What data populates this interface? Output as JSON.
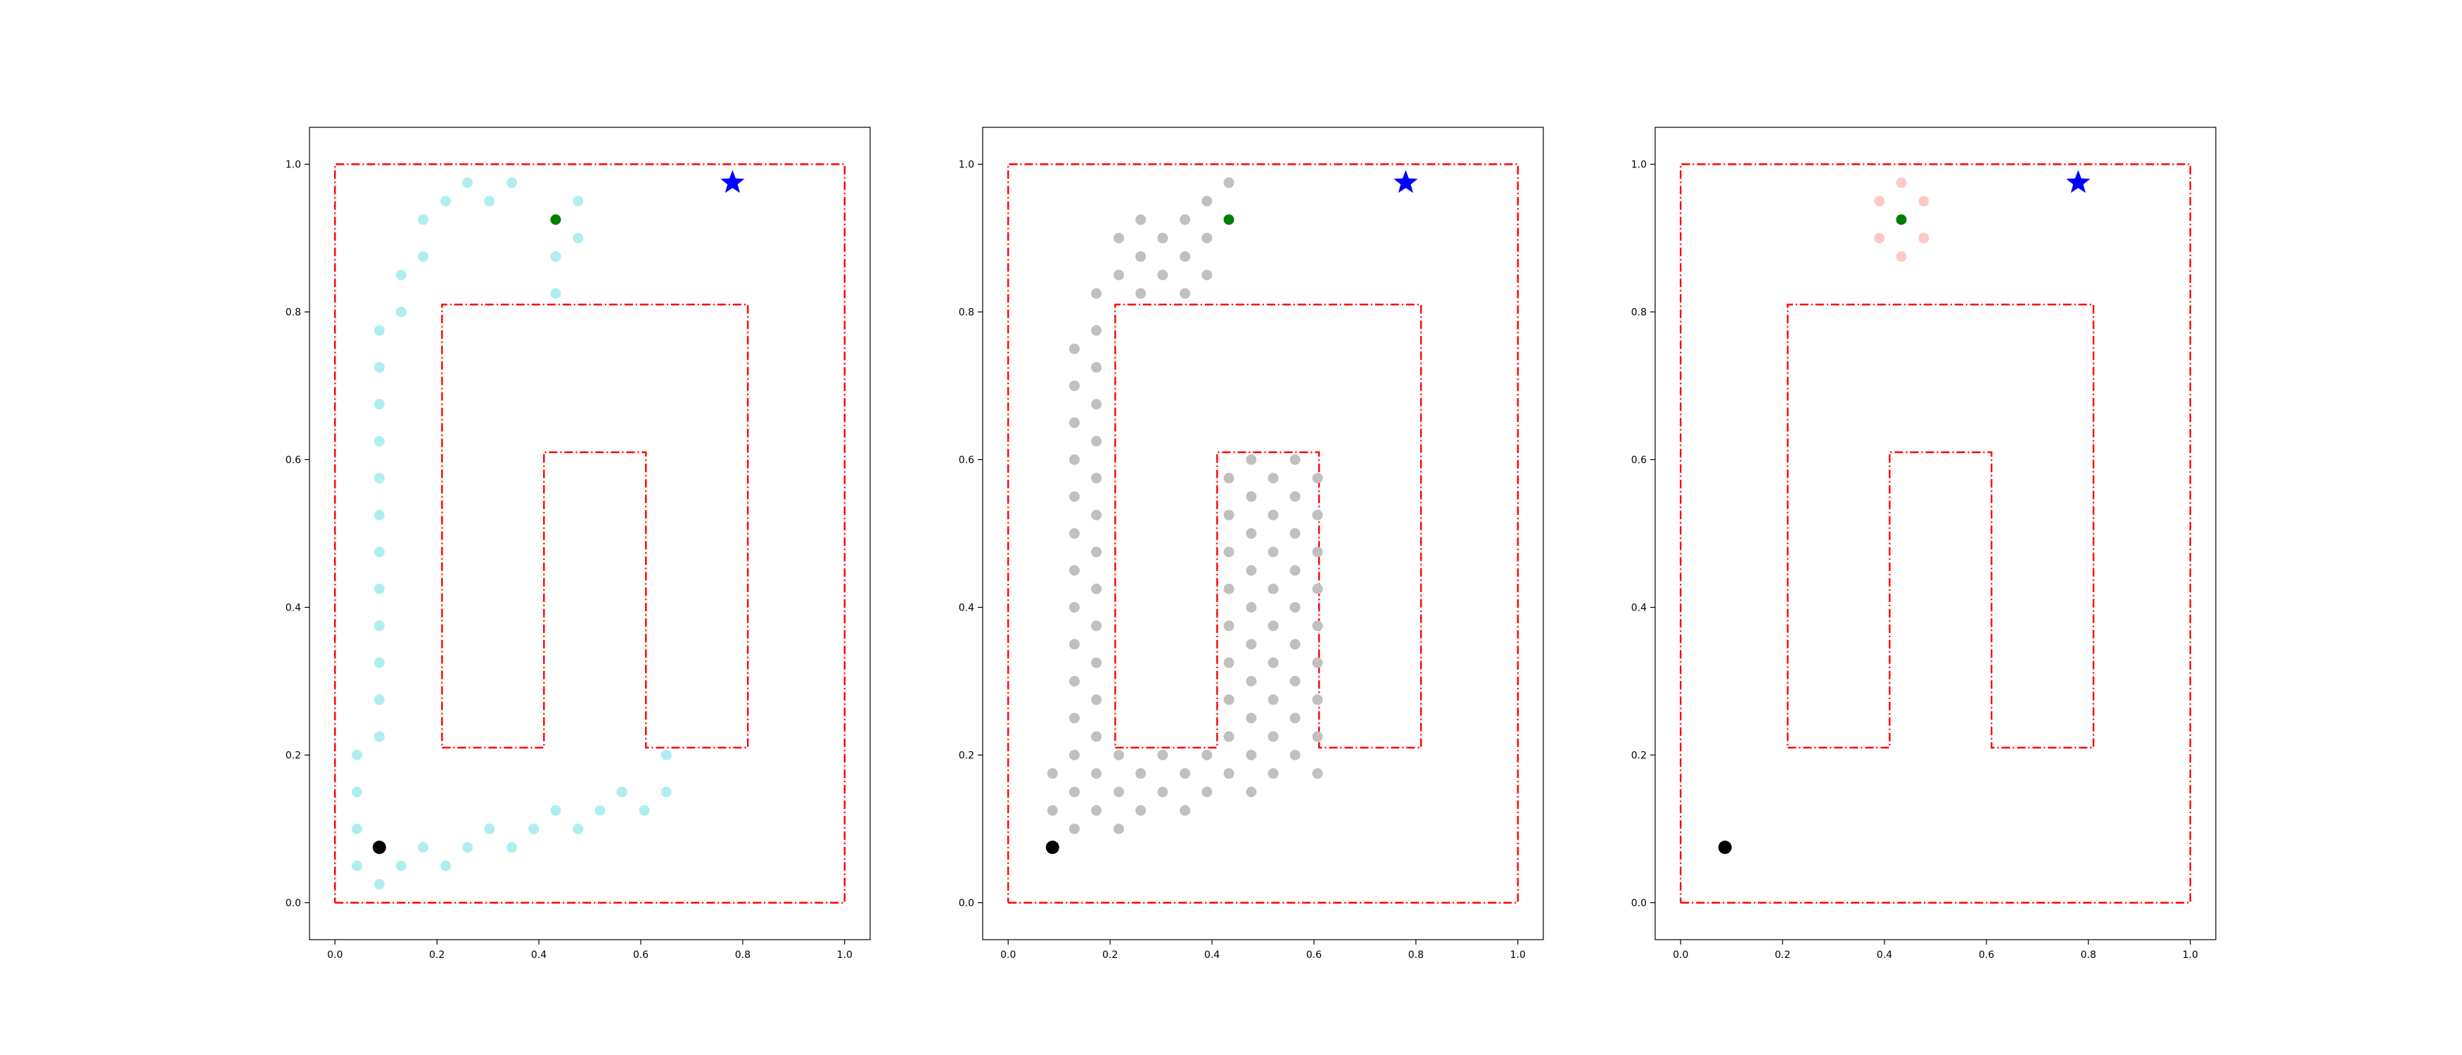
{
  "chart_data": [
    {
      "type": "scatter",
      "title": "",
      "xlabel": "",
      "ylabel": "",
      "xlim": [
        -0.05,
        1.05
      ],
      "ylim": [
        -0.05,
        1.05
      ],
      "xticks": [
        "0.0",
        "0.2",
        "0.4",
        "0.6",
        "0.8",
        "1.0"
      ],
      "yticks": [
        "0.0",
        "0.2",
        "0.4",
        "0.6",
        "0.8",
        "1.0"
      ],
      "grid": false,
      "legend": "none",
      "obstacles": [
        [
          [
            0,
            0
          ],
          [
            1,
            0
          ],
          [
            1,
            1
          ],
          [
            0,
            1
          ],
          [
            0,
            0
          ]
        ],
        [
          [
            0.21,
            0.21
          ],
          [
            0.41,
            0.21
          ],
          [
            0.41,
            0.61
          ],
          [
            0.61,
            0.61
          ],
          [
            0.61,
            0.21
          ],
          [
            0.81,
            0.21
          ],
          [
            0.81,
            0.81
          ],
          [
            0.21,
            0.81
          ],
          [
            0.21,
            0.21
          ]
        ]
      ],
      "obstacle_color": "#ff0000",
      "start": {
        "x": 0.087,
        "y": 0.075,
        "color": "#000000"
      },
      "goal": {
        "x": 0.78,
        "y": 0.975,
        "color": "#0000ff"
      },
      "current": {
        "x": 0.433,
        "y": 0.925,
        "color": "#008000"
      },
      "samples_color": "#afeeee",
      "samples": [
        [
          0.087,
          0.025
        ],
        [
          0.043,
          0.05
        ],
        [
          0.13,
          0.05
        ],
        [
          0.217,
          0.05
        ],
        [
          0.173,
          0.075
        ],
        [
          0.26,
          0.075
        ],
        [
          0.347,
          0.075
        ],
        [
          0.043,
          0.1
        ],
        [
          0.303,
          0.1
        ],
        [
          0.39,
          0.1
        ],
        [
          0.477,
          0.1
        ],
        [
          0.433,
          0.125
        ],
        [
          0.52,
          0.125
        ],
        [
          0.607,
          0.125
        ],
        [
          0.043,
          0.15
        ],
        [
          0.563,
          0.15
        ],
        [
          0.65,
          0.15
        ],
        [
          0.043,
          0.2
        ],
        [
          0.65,
          0.2
        ],
        [
          0.087,
          0.225
        ],
        [
          0.087,
          0.275
        ],
        [
          0.087,
          0.325
        ],
        [
          0.087,
          0.375
        ],
        [
          0.087,
          0.425
        ],
        [
          0.087,
          0.475
        ],
        [
          0.087,
          0.525
        ],
        [
          0.087,
          0.575
        ],
        [
          0.087,
          0.625
        ],
        [
          0.087,
          0.675
        ],
        [
          0.087,
          0.725
        ],
        [
          0.087,
          0.775
        ],
        [
          0.13,
          0.8
        ],
        [
          0.433,
          0.825
        ],
        [
          0.13,
          0.85
        ],
        [
          0.173,
          0.875
        ],
        [
          0.433,
          0.875
        ],
        [
          0.477,
          0.9
        ],
        [
          0.173,
          0.925
        ],
        [
          0.217,
          0.95
        ],
        [
          0.303,
          0.95
        ],
        [
          0.477,
          0.95
        ],
        [
          0.26,
          0.975
        ],
        [
          0.347,
          0.975
        ]
      ]
    },
    {
      "type": "scatter",
      "title": "",
      "xlabel": "",
      "ylabel": "",
      "xlim": [
        -0.05,
        1.05
      ],
      "ylim": [
        -0.05,
        1.05
      ],
      "xticks": [
        "0.0",
        "0.2",
        "0.4",
        "0.6",
        "0.8",
        "1.0"
      ],
      "yticks": [
        "0.0",
        "0.2",
        "0.4",
        "0.6",
        "0.8",
        "1.0"
      ],
      "grid": false,
      "legend": "none",
      "obstacles": [
        [
          [
            0,
            0
          ],
          [
            1,
            0
          ],
          [
            1,
            1
          ],
          [
            0,
            1
          ],
          [
            0,
            0
          ]
        ],
        [
          [
            0.21,
            0.21
          ],
          [
            0.41,
            0.21
          ],
          [
            0.41,
            0.61
          ],
          [
            0.61,
            0.61
          ],
          [
            0.61,
            0.21
          ],
          [
            0.81,
            0.21
          ],
          [
            0.81,
            0.81
          ],
          [
            0.21,
            0.81
          ],
          [
            0.21,
            0.21
          ]
        ]
      ],
      "obstacle_color": "#ff0000",
      "start": {
        "x": 0.087,
        "y": 0.075,
        "color": "#000000"
      },
      "goal": {
        "x": 0.78,
        "y": 0.975,
        "color": "#0000ff"
      },
      "current": {
        "x": 0.433,
        "y": 0.925,
        "color": "#008000"
      },
      "samples_color": "#c0c0c0",
      "samples": [
        [
          0.217,
          0.1
        ],
        [
          0.13,
          0.1
        ],
        [
          0.087,
          0.125
        ],
        [
          0.173,
          0.125
        ],
        [
          0.26,
          0.125
        ],
        [
          0.347,
          0.125
        ],
        [
          0.13,
          0.15
        ],
        [
          0.217,
          0.15
        ],
        [
          0.303,
          0.15
        ],
        [
          0.39,
          0.15
        ],
        [
          0.477,
          0.15
        ],
        [
          0.087,
          0.175
        ],
        [
          0.173,
          0.175
        ],
        [
          0.26,
          0.175
        ],
        [
          0.347,
          0.175
        ],
        [
          0.433,
          0.175
        ],
        [
          0.52,
          0.175
        ],
        [
          0.607,
          0.175
        ],
        [
          0.13,
          0.2
        ],
        [
          0.217,
          0.2
        ],
        [
          0.303,
          0.2
        ],
        [
          0.39,
          0.2
        ],
        [
          0.477,
          0.2
        ],
        [
          0.563,
          0.2
        ],
        [
          0.13,
          0.25
        ],
        [
          0.13,
          0.3
        ],
        [
          0.13,
          0.35
        ],
        [
          0.13,
          0.4
        ],
        [
          0.13,
          0.45
        ],
        [
          0.13,
          0.5
        ],
        [
          0.13,
          0.55
        ],
        [
          0.13,
          0.6
        ],
        [
          0.13,
          0.65
        ],
        [
          0.13,
          0.7
        ],
        [
          0.13,
          0.75
        ],
        [
          0.173,
          0.225
        ],
        [
          0.173,
          0.275
        ],
        [
          0.173,
          0.325
        ],
        [
          0.173,
          0.375
        ],
        [
          0.173,
          0.425
        ],
        [
          0.173,
          0.475
        ],
        [
          0.173,
          0.525
        ],
        [
          0.173,
          0.575
        ],
        [
          0.173,
          0.625
        ],
        [
          0.173,
          0.675
        ],
        [
          0.173,
          0.725
        ],
        [
          0.173,
          0.775
        ],
        [
          0.173,
          0.825
        ],
        [
          0.217,
          0.85
        ],
        [
          0.217,
          0.9
        ],
        [
          0.26,
          0.825
        ],
        [
          0.26,
          0.875
        ],
        [
          0.26,
          0.925
        ],
        [
          0.303,
          0.85
        ],
        [
          0.303,
          0.9
        ],
        [
          0.347,
          0.825
        ],
        [
          0.347,
          0.875
        ],
        [
          0.347,
          0.925
        ],
        [
          0.39,
          0.85
        ],
        [
          0.39,
          0.9
        ],
        [
          0.39,
          0.95
        ],
        [
          0.433,
          0.975
        ],
        [
          0.433,
          0.225
        ],
        [
          0.433,
          0.275
        ],
        [
          0.433,
          0.325
        ],
        [
          0.433,
          0.375
        ],
        [
          0.433,
          0.425
        ],
        [
          0.433,
          0.475
        ],
        [
          0.433,
          0.525
        ],
        [
          0.433,
          0.575
        ],
        [
          0.477,
          0.25
        ],
        [
          0.477,
          0.3
        ],
        [
          0.477,
          0.35
        ],
        [
          0.477,
          0.4
        ],
        [
          0.477,
          0.45
        ],
        [
          0.477,
          0.5
        ],
        [
          0.477,
          0.55
        ],
        [
          0.477,
          0.6
        ],
        [
          0.52,
          0.225
        ],
        [
          0.52,
          0.275
        ],
        [
          0.52,
          0.325
        ],
        [
          0.52,
          0.375
        ],
        [
          0.52,
          0.425
        ],
        [
          0.52,
          0.475
        ],
        [
          0.52,
          0.525
        ],
        [
          0.52,
          0.575
        ],
        [
          0.563,
          0.25
        ],
        [
          0.563,
          0.3
        ],
        [
          0.563,
          0.35
        ],
        [
          0.563,
          0.4
        ],
        [
          0.563,
          0.45
        ],
        [
          0.563,
          0.5
        ],
        [
          0.563,
          0.55
        ],
        [
          0.563,
          0.6
        ],
        [
          0.607,
          0.225
        ],
        [
          0.607,
          0.275
        ],
        [
          0.607,
          0.325
        ],
        [
          0.607,
          0.375
        ],
        [
          0.607,
          0.425
        ],
        [
          0.607,
          0.475
        ],
        [
          0.607,
          0.525
        ],
        [
          0.607,
          0.575
        ]
      ]
    },
    {
      "type": "scatter",
      "title": "",
      "xlabel": "",
      "ylabel": "",
      "xlim": [
        -0.05,
        1.05
      ],
      "ylim": [
        -0.05,
        1.05
      ],
      "xticks": [
        "0.0",
        "0.2",
        "0.4",
        "0.6",
        "0.8",
        "1.0"
      ],
      "yticks": [
        "0.0",
        "0.2",
        "0.4",
        "0.6",
        "0.8",
        "1.0"
      ],
      "grid": false,
      "legend": "none",
      "obstacles": [
        [
          [
            0,
            0
          ],
          [
            1,
            0
          ],
          [
            1,
            1
          ],
          [
            0,
            1
          ],
          [
            0,
            0
          ]
        ],
        [
          [
            0.21,
            0.21
          ],
          [
            0.41,
            0.21
          ],
          [
            0.41,
            0.61
          ],
          [
            0.61,
            0.61
          ],
          [
            0.61,
            0.21
          ],
          [
            0.81,
            0.21
          ],
          [
            0.81,
            0.81
          ],
          [
            0.21,
            0.81
          ],
          [
            0.21,
            0.21
          ]
        ]
      ],
      "obstacle_color": "#ff0000",
      "start": {
        "x": 0.087,
        "y": 0.075,
        "color": "#000000"
      },
      "goal": {
        "x": 0.78,
        "y": 0.975,
        "color": "#0000ff"
      },
      "current": {
        "x": 0.433,
        "y": 0.925,
        "color": "#008000"
      },
      "samples_color": "#ffc8c8",
      "samples": [
        [
          0.433,
          0.975
        ],
        [
          0.39,
          0.95
        ],
        [
          0.477,
          0.95
        ],
        [
          0.39,
          0.9
        ],
        [
          0.477,
          0.9
        ],
        [
          0.433,
          0.875
        ]
      ]
    }
  ]
}
